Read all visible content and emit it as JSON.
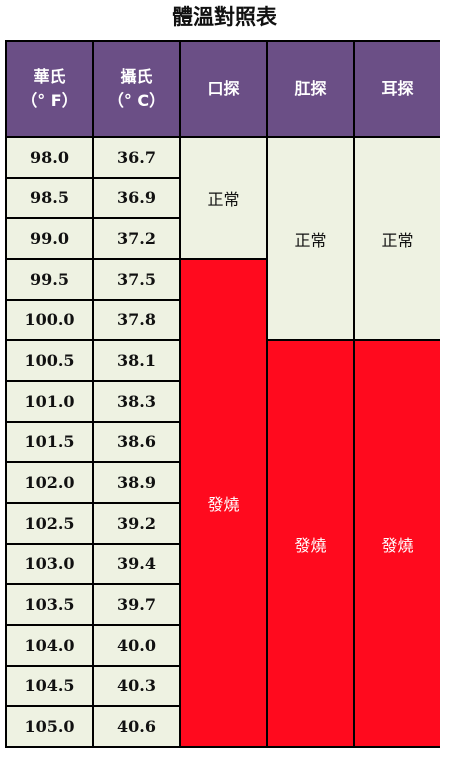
{
  "title": "體溫對照表",
  "headers": {
    "f_name": "華氏",
    "f_unit": "（° F）",
    "c_name": "攝氏",
    "c_unit": "（° C）",
    "oral": "口探",
    "rectal": "肛探",
    "ear": "耳探"
  },
  "rows": [
    {
      "f": "98.0",
      "c": "36.7"
    },
    {
      "f": "98.5",
      "c": "36.9"
    },
    {
      "f": "99.0",
      "c": "37.2"
    },
    {
      "f": "99.5",
      "c": "37.5"
    },
    {
      "f": "100.0",
      "c": "37.8"
    },
    {
      "f": "100.5",
      "c": "38.1"
    },
    {
      "f": "101.0",
      "c": "38.3"
    },
    {
      "f": "101.5",
      "c": "38.6"
    },
    {
      "f": "102.0",
      "c": "38.9"
    },
    {
      "f": "102.5",
      "c": "39.2"
    },
    {
      "f": "103.0",
      "c": "39.4"
    },
    {
      "f": "103.5",
      "c": "39.7"
    },
    {
      "f": "104.0",
      "c": "40.0"
    },
    {
      "f": "104.5",
      "c": "40.3"
    },
    {
      "f": "105.0",
      "c": "40.6"
    }
  ],
  "status": {
    "oral_normal": "正常",
    "oral_fever": "發燒",
    "rectal_normal": "正常",
    "rectal_fever": "發燒",
    "ear_normal": "正常",
    "ear_fever": "發燒"
  },
  "colors": {
    "header": "#6b4f86",
    "normal": "#eef2e2",
    "fever": "#ff0a1e"
  }
}
